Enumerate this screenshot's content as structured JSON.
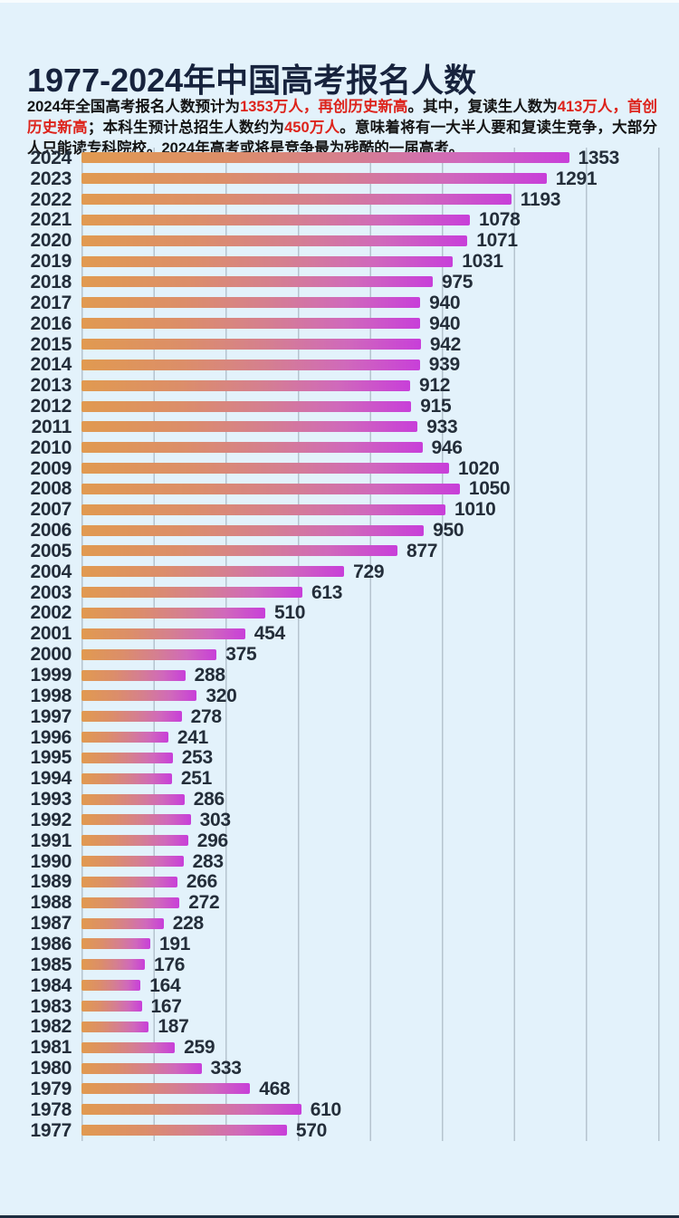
{
  "page": {
    "background_color": "#e3f2fb",
    "bottom_bar_color": "#1e2e40"
  },
  "header": {
    "title": "1977-2024年中国高考报名人数",
    "intro_segments": [
      {
        "text": "2024年全国高考报名人数预计为",
        "red": false
      },
      {
        "text": "1353万人，再创历史新高",
        "red": true
      },
      {
        "text": "。其中，复读生人数为",
        "red": false
      },
      {
        "text": "413万人，首创历史新高",
        "red": true
      },
      {
        "text": "；本科生预计总招生人数约为",
        "red": false
      },
      {
        "text": "450万人",
        "red": true
      },
      {
        "text": "。意味着将有一大半人要和复读生竞争，大部分人只能读专科院校。2024年高考或将是竞争最为残酷的一届高考。",
        "red": false
      }
    ],
    "highlight_color": "#dd231b",
    "title_color": "#17233d"
  },
  "chart_data": {
    "type": "bar",
    "orientation": "horizontal",
    "title": "1977-2024年中国高考报名人数",
    "unit": "万人",
    "xlim": [
      0,
      1600
    ],
    "gridline_interval": 200,
    "grid": true,
    "legend": "none",
    "bar_gradient": [
      "#e19a50",
      "#c83fd9"
    ],
    "categories": [
      "2024",
      "2023",
      "2022",
      "2021",
      "2020",
      "2019",
      "2018",
      "2017",
      "2016",
      "2015",
      "2014",
      "2013",
      "2012",
      "2011",
      "2010",
      "2009",
      "2008",
      "2007",
      "2006",
      "2005",
      "2004",
      "2003",
      "2002",
      "2001",
      "2000",
      "1999",
      "1998",
      "1997",
      "1996",
      "1995",
      "1994",
      "1993",
      "1992",
      "1991",
      "1990",
      "1989",
      "1988",
      "1987",
      "1986",
      "1985",
      "1984",
      "1983",
      "1982",
      "1981",
      "1980",
      "1979",
      "1978",
      "1977"
    ],
    "values": [
      1353,
      1291,
      1193,
      1078,
      1071,
      1031,
      975,
      940,
      940,
      942,
      939,
      912,
      915,
      933,
      946,
      1020,
      1050,
      1010,
      950,
      877,
      729,
      613,
      510,
      454,
      375,
      288,
      320,
      278,
      241,
      253,
      251,
      286,
      303,
      296,
      283,
      266,
      272,
      228,
      191,
      176,
      164,
      167,
      187,
      259,
      333,
      468,
      610,
      570
    ]
  }
}
